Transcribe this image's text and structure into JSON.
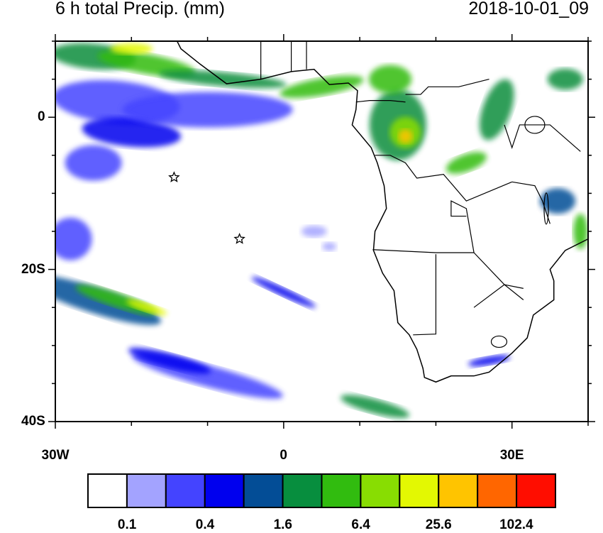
{
  "title_left": "6 h total Precip. (mm)",
  "title_right": "2018-10-01_09",
  "map": {
    "projection": "cylindrical equidistant",
    "lon_range": [
      -30,
      40
    ],
    "lat_range": [
      -40,
      10
    ],
    "y_tick_labels": [
      {
        "lat": 0,
        "text": "0"
      },
      {
        "lat": -20,
        "text": "20S"
      },
      {
        "lat": -40,
        "text": "40S"
      }
    ],
    "x_tick_labels": [
      {
        "lon": -30,
        "text": "30W"
      },
      {
        "lon": 0,
        "text": "0"
      },
      {
        "lon": 30,
        "text": "30E"
      }
    ],
    "markers": [
      {
        "lon": -14.4,
        "lat": -7.9,
        "symbol": "star"
      },
      {
        "lon": -5.8,
        "lat": -16,
        "symbol": "star"
      }
    ]
  },
  "colorbar": {
    "colors": [
      "#ffffff",
      "#a3a3ff",
      "#4444ff",
      "#0000ee",
      "#034d96",
      "#078e3e",
      "#31bc0f",
      "#88dd02",
      "#e3f802",
      "#ffc400",
      "#ff6600",
      "#ff0d00"
    ],
    "labels": [
      "0.1",
      "0.4",
      "1.6",
      "6.4",
      "25.6",
      "102.4"
    ]
  }
}
